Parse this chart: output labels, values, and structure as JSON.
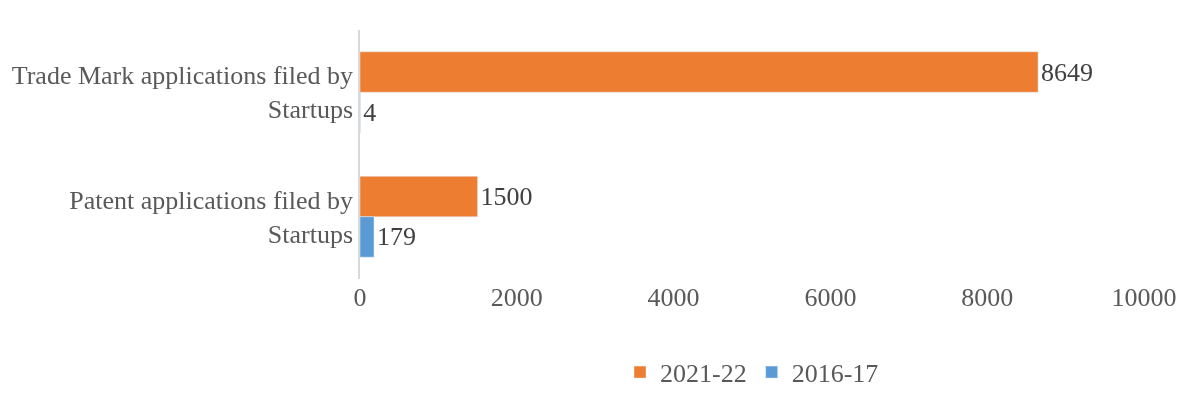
{
  "chart_data": {
    "type": "bar",
    "orientation": "horizontal",
    "categories": [
      "Trade Mark applications filed by Startups",
      "Patent applications filed by Startups"
    ],
    "series": [
      {
        "name": "2021-22",
        "color": "#ed7d31",
        "values": [
          8649,
          1500
        ]
      },
      {
        "name": "2016-17",
        "color": "#5b9bd5",
        "values": [
          4,
          179
        ]
      }
    ],
    "xlim": [
      0,
      10000
    ],
    "xticks": [
      0,
      2000,
      4000,
      6000,
      8000,
      10000
    ],
    "data_labels": true,
    "legend": "bottom"
  }
}
